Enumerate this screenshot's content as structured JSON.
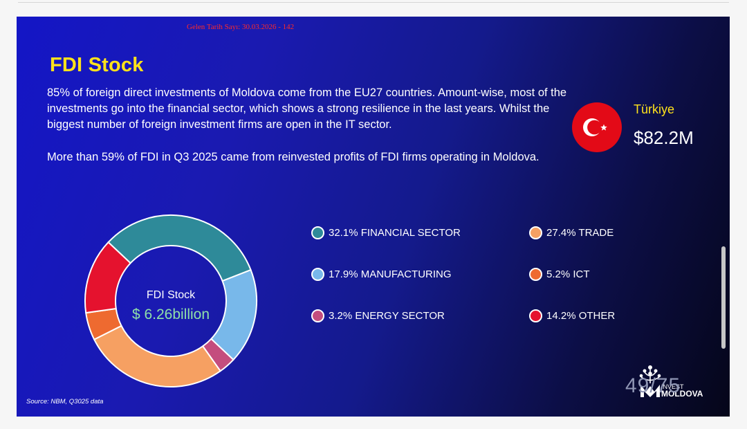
{
  "stamp": "Gelen Tarih Sayı: 30.03.2026 - 142",
  "title": "FDI Stock",
  "paragraphs": [
    "85% of foreign direct investments of Moldova come from the EU27 countries. Amount-wise, most of the investments go into the financial sector, which shows a strong resilience in the last years. Whilst the biggest number of foreign investment firms are open in the IT sector.",
    "More than 59% of FDI in Q3 2025 came from reinvested profits of FDI firms operating in Moldova."
  ],
  "highlight": {
    "country": "Türkiye",
    "amount": "$82.2M",
    "flag_icon": "turkey-flag-icon",
    "flag_color": "#e30a17"
  },
  "chart_data": {
    "type": "pie",
    "variant": "donut",
    "center_label": "FDI Stock",
    "center_value": "$ 6.26billion",
    "slices": [
      {
        "label": "FINANCIAL SECTOR",
        "value": 32.1,
        "text": "32.1% FINANCIAL SECTOR",
        "color": "#2e8a99"
      },
      {
        "label": "MANUFACTURING",
        "value": 17.9,
        "text": "17.9% MANUFACTURING",
        "color": "#78b8ea"
      },
      {
        "label": "ENERGY SECTOR",
        "value": 3.2,
        "text": "3.2% ENERGY SECTOR",
        "color": "#c44d7e"
      },
      {
        "label": "TRADE",
        "value": 27.4,
        "text": "27.4% TRADE",
        "color": "#f6a062"
      },
      {
        "label": "ICT",
        "value": 5.2,
        "text": "5.2% ICT",
        "color": "#ee6a30"
      },
      {
        "label": "OTHER",
        "value": 14.2,
        "text": "14.2% OTHER",
        "color": "#e5122e"
      }
    ],
    "legend_position": "right"
  },
  "source": "Source: NBM, Q3025 data",
  "logo": {
    "line1": "INVEST",
    "line2": "MOLDOVA",
    "icon": "invest-moldova-logo-icon"
  },
  "page_number": "49/75"
}
